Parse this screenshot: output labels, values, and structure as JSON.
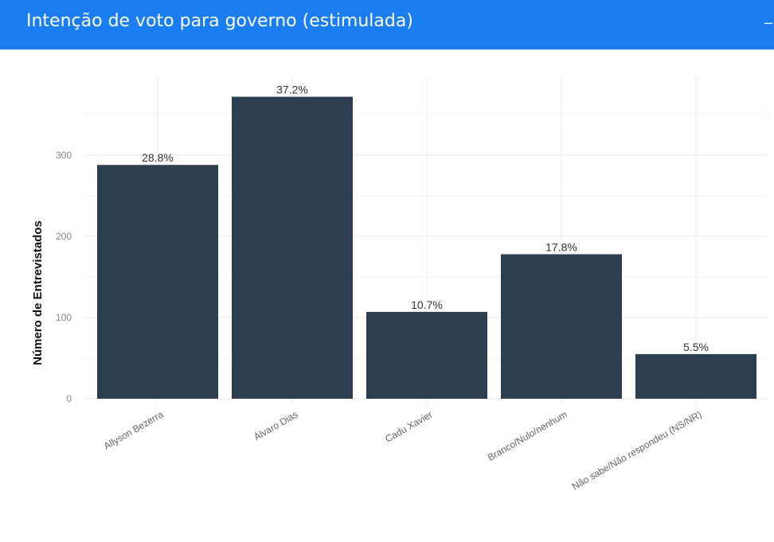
{
  "header": {
    "title": "Intenção de voto para governo (estimulada)",
    "collapse_icon": "minus-icon"
  },
  "chart_data": {
    "type": "bar",
    "title": "",
    "xlabel": "",
    "ylabel": "Número de Entrevistados",
    "categories": [
      "Allyson Bezerra",
      "Álvaro Dias",
      "Cadu Xavier",
      "Branco/Nulo/nenhum",
      "Não sabe/Não respondeu (NS/NR)"
    ],
    "values": [
      288,
      372,
      107,
      178,
      55
    ],
    "labels": [
      "28.8%",
      "37.2%",
      "10.7%",
      "17.8%",
      "5.5%"
    ],
    "yticks": [
      0,
      100,
      200,
      300
    ],
    "ylim": [
      0,
      390
    ],
    "grid": true,
    "bar_color": "#2c3e50"
  }
}
